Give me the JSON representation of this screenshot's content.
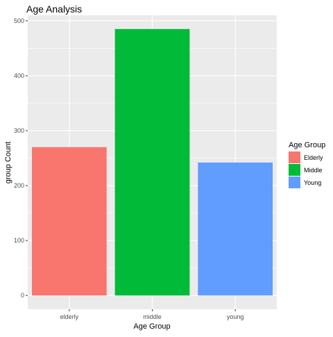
{
  "chart_data": {
    "type": "bar",
    "title": "Age Analysis",
    "xlabel": "Age Group",
    "ylabel": "group Count",
    "categories": [
      "elderly",
      "middle",
      "young"
    ],
    "values": [
      270,
      485,
      242
    ],
    "colors": [
      "#F8766D",
      "#00BA38",
      "#619CFF"
    ],
    "ylim": [
      -25,
      510
    ],
    "yticks": [
      0,
      100,
      200,
      300,
      400,
      500
    ],
    "grid": true,
    "panel_background": "#EBEBEB",
    "legend": {
      "title": "Age Group",
      "position": "right",
      "entries": [
        {
          "label": "Elderly",
          "color": "#F8766D"
        },
        {
          "label": "Middle",
          "color": "#00BA38"
        },
        {
          "label": "Young",
          "color": "#619CFF"
        }
      ]
    }
  }
}
